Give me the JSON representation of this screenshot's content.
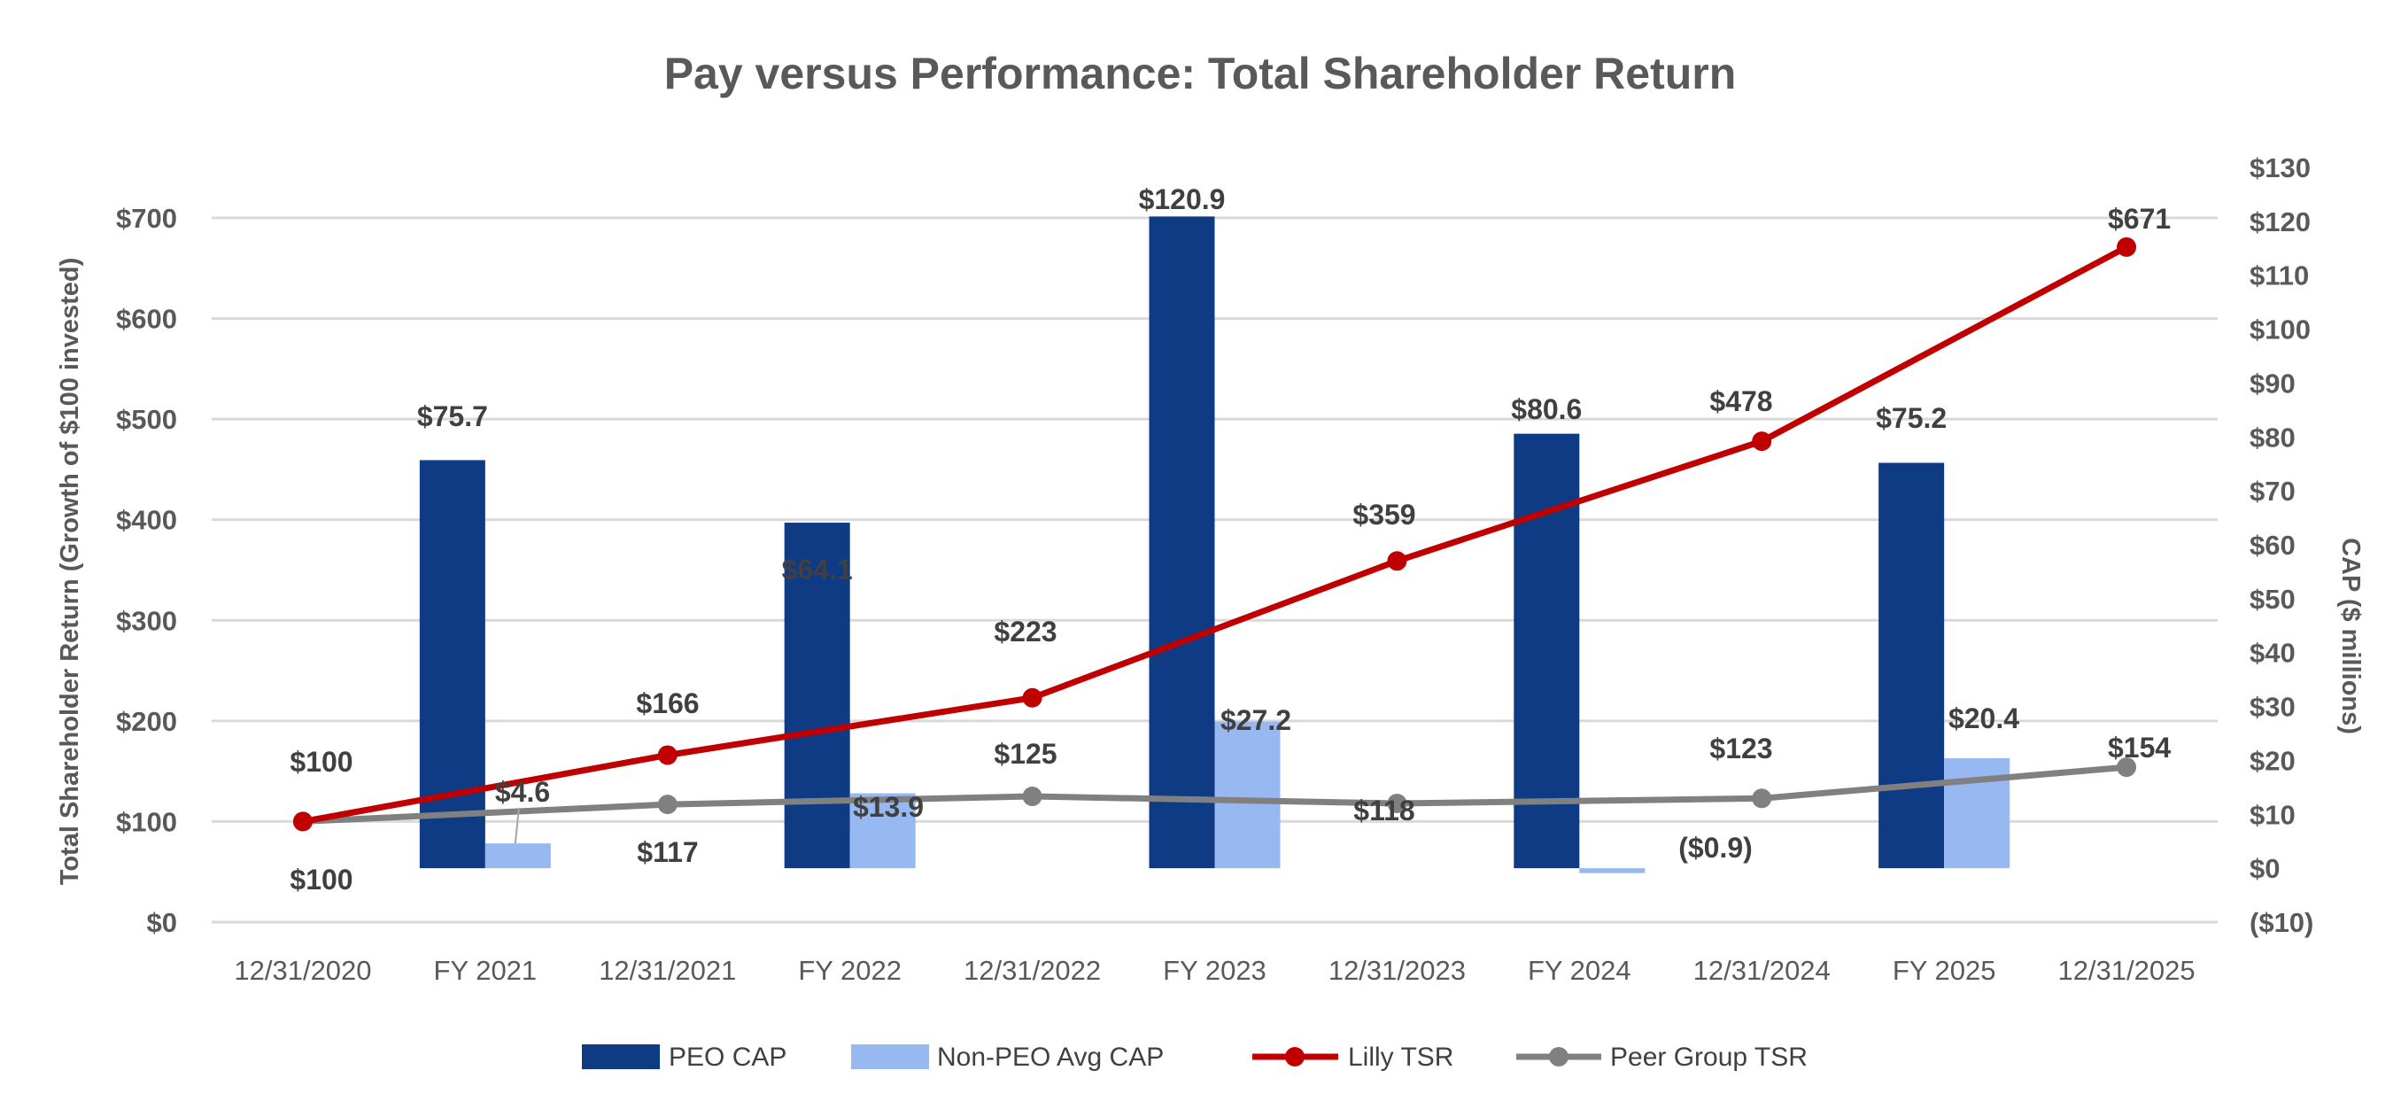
{
  "chart_data": {
    "type": "bar+line",
    "title": "Pay versus Performance: Total Shareholder Return",
    "ylabel": "Total Shareholder Return (Growth of $100 invested)",
    "y2label": "CAP ($ millions)",
    "ylim": [
      0,
      700
    ],
    "y2lim": [
      -10,
      130
    ],
    "yticks": [
      "$0",
      "$100",
      "$200",
      "$300",
      "$400",
      "$500",
      "$600",
      "$700"
    ],
    "y2ticks": [
      "($10)",
      "$0",
      "$10",
      "$20",
      "$30",
      "$40",
      "$50",
      "$60",
      "$70",
      "$80",
      "$90",
      "$100",
      "$110",
      "$120",
      "$130"
    ],
    "grid": true,
    "legend_position": "bottom",
    "categories": [
      "12/31/2020",
      "FY 2021",
      "12/31/2021",
      "FY 2022",
      "12/31/2022",
      "FY 2023",
      "12/31/2023",
      "FY 2024",
      "12/31/2024",
      "FY 2025",
      "12/31/2025"
    ],
    "bar_series": [
      {
        "name": "PEO CAP",
        "axis": "right",
        "color": "#0F3A84",
        "points": [
          {
            "category": "FY 2021",
            "value": 75.7,
            "label": "$75.7"
          },
          {
            "category": "FY 2022",
            "value": 64.1,
            "label": "$64.1"
          },
          {
            "category": "FY 2023",
            "value": 120.9,
            "label": "$120.9"
          },
          {
            "category": "FY 2024",
            "value": 80.6,
            "label": "$80.6"
          },
          {
            "category": "FY 2025",
            "value": 75.2,
            "label": "$75.2"
          }
        ]
      },
      {
        "name": "Non-PEO Avg CAP",
        "axis": "right",
        "color": "#97B8F0",
        "points": [
          {
            "category": "FY 2021",
            "value": 4.6,
            "label": "$4.6"
          },
          {
            "category": "FY 2022",
            "value": 13.9,
            "label": "$13.9"
          },
          {
            "category": "FY 2023",
            "value": 27.2,
            "label": "$27.2"
          },
          {
            "category": "FY 2024",
            "value": -0.9,
            "label": "($0.9)"
          },
          {
            "category": "FY 2025",
            "value": 20.4,
            "label": "$20.4"
          }
        ]
      }
    ],
    "line_series": [
      {
        "name": "Lilly TSR",
        "axis": "left",
        "color": "#C00000",
        "points": [
          {
            "category": "12/31/2020",
            "value": 100,
            "label": "$100"
          },
          {
            "category": "12/31/2021",
            "value": 166,
            "label": "$166"
          },
          {
            "category": "12/31/2022",
            "value": 223,
            "label": "$223"
          },
          {
            "category": "12/31/2023",
            "value": 359,
            "label": "$359"
          },
          {
            "category": "12/31/2024",
            "value": 478,
            "label": "$478"
          },
          {
            "category": "12/31/2025",
            "value": 671,
            "label": "$671"
          }
        ]
      },
      {
        "name": "Peer Group TSR",
        "axis": "left",
        "color": "#808080",
        "points": [
          {
            "category": "12/31/2020",
            "value": 100,
            "label": "$100"
          },
          {
            "category": "12/31/2021",
            "value": 117,
            "label": "$117"
          },
          {
            "category": "12/31/2022",
            "value": 125,
            "label": "$125"
          },
          {
            "category": "12/31/2023",
            "value": 118,
            "label": "$118"
          },
          {
            "category": "12/31/2024",
            "value": 123,
            "label": "$123"
          },
          {
            "category": "12/31/2025",
            "value": 154,
            "label": "$154"
          }
        ]
      }
    ]
  }
}
